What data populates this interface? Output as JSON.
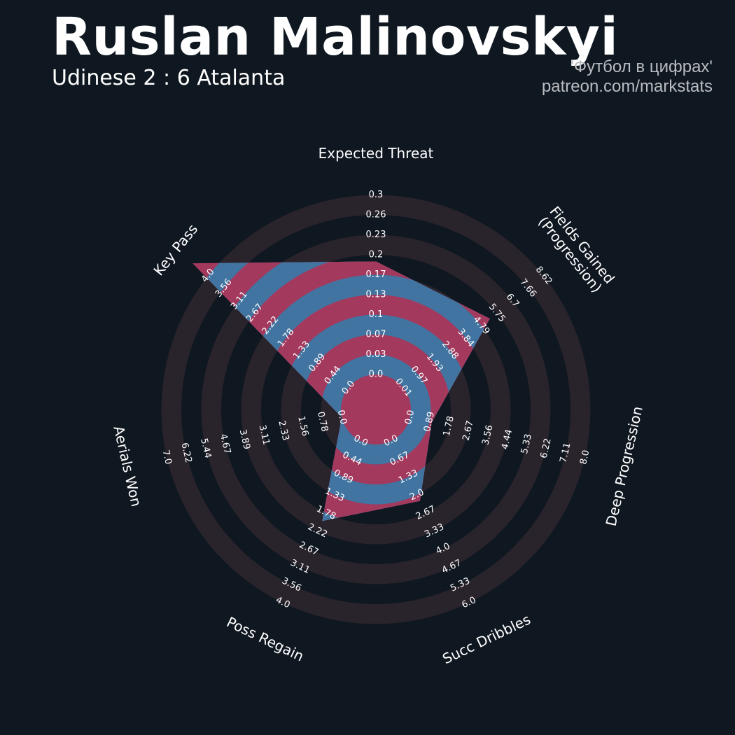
{
  "header": {
    "title": "Ruslan Malinovskyi",
    "subtitle": "Udinese 2 : 6 Atalanta",
    "credit_line1": "'Футбол в цифрах'",
    "credit_line2": "patreon.com/markstats"
  },
  "colors": {
    "background": "#0f1720",
    "ring_band": "#29232b",
    "fill_blue": "#4174a0",
    "fill_red": "#a4395e"
  },
  "chart_data": {
    "type": "radar",
    "title": "Ruslan Malinovskyi",
    "subtitle": "Udinese 2 : 6 Atalanta",
    "ring_count": 10,
    "axes": [
      {
        "name": "Expected Threat",
        "min": 0.0,
        "max": 0.3,
        "value": 0.17,
        "ticks": [
          "0.0",
          "0.03",
          "0.07",
          "0.1",
          "0.13",
          "0.17",
          "0.2",
          "0.23",
          "0.26",
          "0.3"
        ]
      },
      {
        "name": "Fields Gained\n(Progression)",
        "min": 0.01,
        "max": 8.62,
        "value": 4.79,
        "ticks": [
          "0.01",
          "0.97",
          "1.93",
          "2.88",
          "3.84",
          "4.79",
          "5.75",
          "6.7",
          "7.66",
          "8.62"
        ]
      },
      {
        "name": "Deep Progression",
        "min": 0.0,
        "max": 8.0,
        "value": 0.89,
        "ticks": [
          "0.0",
          "0.89",
          "1.78",
          "2.67",
          "3.56",
          "4.44",
          "5.33",
          "6.22",
          "7.11",
          "8.0"
        ]
      },
      {
        "name": "Succ Dribbles",
        "min": 0.0,
        "max": 6.0,
        "value": 2.0,
        "ticks": [
          "0.0",
          "0.67",
          "1.33",
          "2.0",
          "2.67",
          "3.33",
          "4.0",
          "4.67",
          "5.33",
          "6.0"
        ]
      },
      {
        "name": "Poss Regain",
        "min": 0.0,
        "max": 4.0,
        "value": 1.78,
        "ticks": [
          "0.0",
          "0.44",
          "0.89",
          "1.33",
          "1.78",
          "2.22",
          "2.67",
          "3.11",
          "3.56",
          "4.0"
        ]
      },
      {
        "name": "Aerials Won",
        "min": 0.0,
        "max": 7.0,
        "value": 0.0,
        "ticks": [
          "0.0",
          "0.78",
          "1.56",
          "2.33",
          "3.11",
          "3.89",
          "4.67",
          "5.44",
          "6.22",
          "7.0"
        ]
      },
      {
        "name": "Key Pass",
        "min": 0.0,
        "max": 4.0,
        "value": 4.0,
        "ticks": [
          "0.0",
          "0.44",
          "0.89",
          "1.33",
          "1.78",
          "2.22",
          "2.67",
          "3.11",
          "3.56",
          "4.0"
        ]
      }
    ]
  }
}
